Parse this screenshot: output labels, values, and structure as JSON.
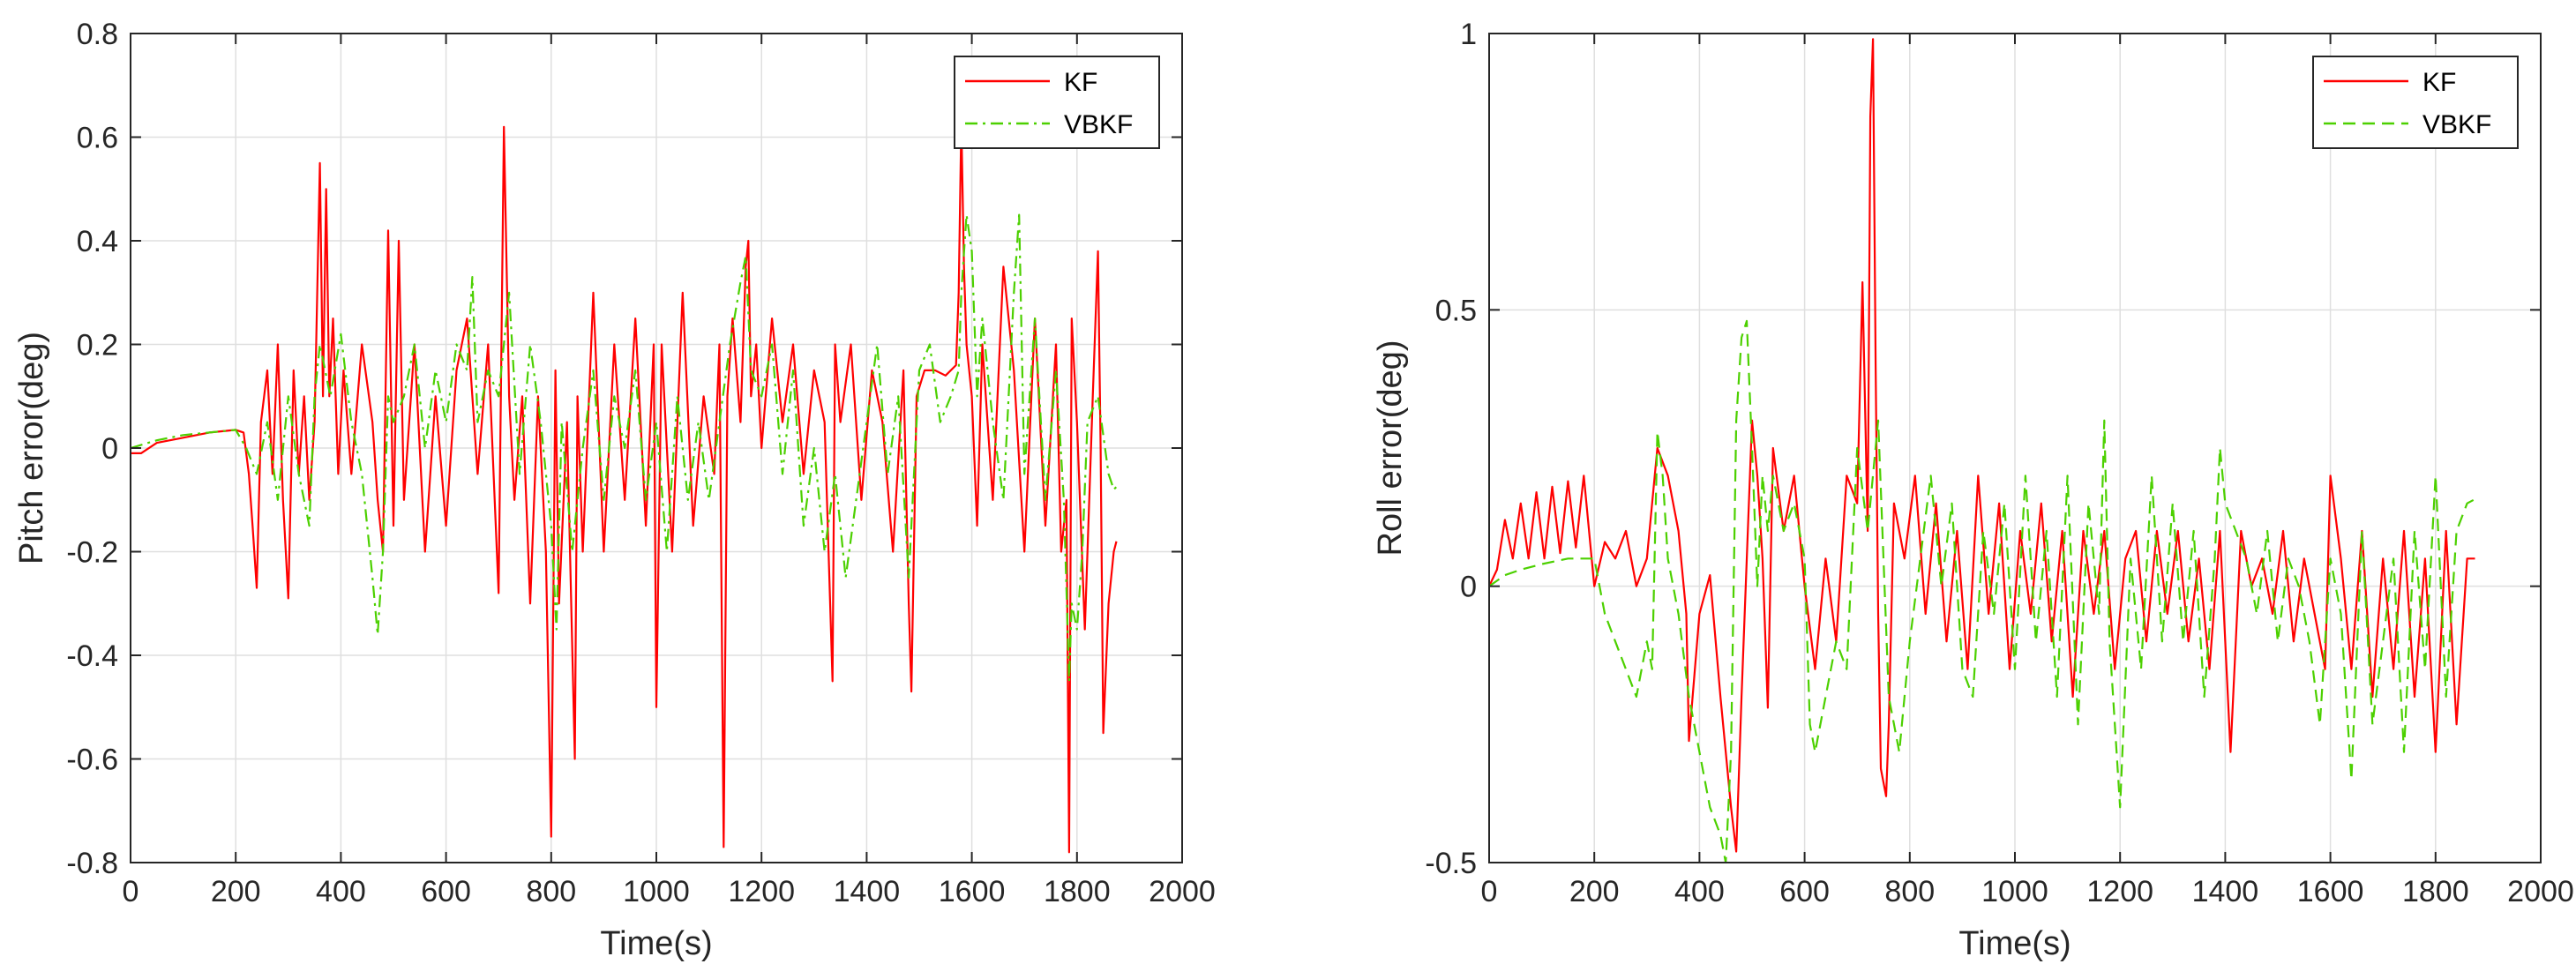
{
  "chart_data": [
    {
      "id": "pitch",
      "type": "line",
      "xlabel": "Time(s)",
      "ylabel": "Pitch error(deg)",
      "xlim": [
        0,
        2000
      ],
      "ylim": [
        -0.8,
        0.8
      ],
      "xticks": [
        0,
        200,
        400,
        600,
        800,
        1000,
        1200,
        1400,
        1600,
        1800,
        2000
      ],
      "xtick_labels": [
        "0",
        "200",
        "400",
        "600",
        "800",
        "1000",
        "1200",
        "1400",
        "1600",
        "1800",
        "2000"
      ],
      "yticks": [
        -0.8,
        -0.6,
        -0.4,
        -0.2,
        0,
        0.2,
        0.4,
        0.6,
        0.8
      ],
      "ytick_labels": [
        "-0.8",
        "-0.6",
        "-0.4",
        "-0.2",
        "0",
        "0.2",
        "0.4",
        "0.6",
        "0.8"
      ],
      "grid": true,
      "legend_position": "top-right",
      "series": [
        {
          "name": "KF",
          "color": "#ff0000",
          "style": "solid",
          "x": [
            0,
            20,
            50,
            100,
            150,
            200,
            215,
            225,
            232,
            240,
            248,
            260,
            270,
            280,
            290,
            300,
            310,
            320,
            330,
            340,
            350,
            360,
            366,
            372,
            378,
            385,
            395,
            405,
            420,
            440,
            460,
            470,
            480,
            490,
            500,
            510,
            520,
            540,
            560,
            580,
            600,
            620,
            640,
            660,
            680,
            700,
            710,
            720,
            730,
            745,
            760,
            775,
            790,
            800,
            808,
            815,
            830,
            845,
            850,
            860,
            880,
            900,
            920,
            940,
            960,
            980,
            995,
            1000,
            1010,
            1030,
            1050,
            1070,
            1090,
            1110,
            1120,
            1128,
            1135,
            1145,
            1160,
            1170,
            1175,
            1180,
            1190,
            1200,
            1220,
            1240,
            1260,
            1280,
            1300,
            1320,
            1335,
            1340,
            1350,
            1370,
            1390,
            1410,
            1430,
            1450,
            1470,
            1480,
            1485,
            1495,
            1510,
            1530,
            1550,
            1570,
            1575,
            1580,
            1585,
            1590,
            1600,
            1610,
            1620,
            1640,
            1660,
            1680,
            1700,
            1720,
            1740,
            1760,
            1770,
            1780,
            1785,
            1790,
            1800,
            1815,
            1830,
            1840,
            1845,
            1850,
            1860,
            1870,
            1875
          ],
          "y": [
            -0.01,
            -0.01,
            0.01,
            0.02,
            0.03,
            0.035,
            0.03,
            -0.05,
            -0.15,
            -0.27,
            0.05,
            0.15,
            -0.05,
            0.2,
            -0.1,
            -0.29,
            0.15,
            -0.05,
            0.1,
            -0.1,
            0.05,
            0.55,
            0.1,
            0.5,
            0.1,
            0.25,
            -0.05,
            0.15,
            -0.05,
            0.2,
            0.05,
            -0.1,
            -0.2,
            0.42,
            -0.15,
            0.4,
            -0.1,
            0.2,
            -0.2,
            0.1,
            -0.15,
            0.15,
            0.25,
            -0.05,
            0.2,
            -0.28,
            0.62,
            0.1,
            -0.1,
            0.1,
            -0.3,
            0.1,
            -0.2,
            -0.75,
            0.15,
            -0.3,
            0.05,
            -0.6,
            0.1,
            -0.2,
            0.3,
            -0.2,
            0.2,
            -0.1,
            0.25,
            -0.15,
            0.2,
            -0.5,
            0.2,
            -0.2,
            0.3,
            -0.15,
            0.1,
            -0.05,
            0.2,
            -0.77,
            0.1,
            0.25,
            0.05,
            0.35,
            0.4,
            0.1,
            0.2,
            0.0,
            0.25,
            0.05,
            0.2,
            -0.05,
            0.15,
            0.05,
            -0.45,
            0.2,
            0.05,
            0.2,
            -0.1,
            0.15,
            0.05,
            -0.2,
            0.15,
            -0.3,
            -0.47,
            0.1,
            0.15,
            0.15,
            0.14,
            0.16,
            0.3,
            0.63,
            0.35,
            0.2,
            0.1,
            -0.15,
            0.2,
            -0.1,
            0.35,
            0.15,
            -0.2,
            0.25,
            -0.15,
            0.2,
            -0.2,
            -0.1,
            -0.78,
            0.25,
            0.05,
            -0.35,
            0.1,
            0.38,
            0.0,
            -0.55,
            -0.3,
            -0.2,
            -0.18
          ]
        },
        {
          "name": "VBKF",
          "color": "#4cd000",
          "style": "dash-dot",
          "x": [
            0,
            50,
            100,
            150,
            200,
            220,
            240,
            260,
            280,
            300,
            320,
            340,
            350,
            360,
            380,
            400,
            420,
            440,
            460,
            470,
            480,
            490,
            500,
            520,
            540,
            560,
            580,
            600,
            620,
            640,
            650,
            660,
            680,
            700,
            720,
            740,
            760,
            780,
            800,
            810,
            820,
            840,
            860,
            880,
            900,
            920,
            940,
            960,
            980,
            1000,
            1020,
            1040,
            1060,
            1080,
            1100,
            1120,
            1140,
            1160,
            1170,
            1180,
            1200,
            1220,
            1240,
            1260,
            1280,
            1300,
            1320,
            1340,
            1360,
            1380,
            1400,
            1420,
            1440,
            1460,
            1480,
            1500,
            1520,
            1540,
            1560,
            1575,
            1580,
            1590,
            1600,
            1610,
            1620,
            1640,
            1660,
            1680,
            1690,
            1700,
            1720,
            1740,
            1760,
            1775,
            1785,
            1790,
            1800,
            1810,
            1820,
            1840,
            1860,
            1870,
            1880
          ],
          "y": [
            0.0,
            0.015,
            0.025,
            0.03,
            0.035,
            0.0,
            -0.05,
            0.05,
            -0.1,
            0.1,
            -0.05,
            -0.15,
            0.1,
            0.2,
            0.1,
            0.22,
            0.05,
            -0.05,
            -0.25,
            -0.36,
            -0.2,
            0.1,
            0.05,
            0.1,
            0.2,
            0.0,
            0.15,
            0.05,
            0.2,
            0.15,
            0.33,
            0.05,
            0.15,
            0.1,
            0.3,
            -0.05,
            0.2,
            0.05,
            -0.15,
            -0.35,
            0.05,
            -0.2,
            0.0,
            0.15,
            -0.1,
            0.1,
            0.0,
            0.15,
            -0.1,
            0.05,
            -0.2,
            0.1,
            -0.1,
            0.05,
            -0.1,
            0.05,
            0.2,
            0.32,
            0.37,
            0.15,
            0.1,
            0.2,
            -0.05,
            0.15,
            -0.15,
            0.0,
            -0.2,
            -0.05,
            -0.25,
            -0.1,
            0.05,
            0.2,
            -0.05,
            0.1,
            -0.25,
            0.15,
            0.2,
            0.05,
            0.1,
            0.15,
            0.3,
            0.45,
            0.38,
            0.1,
            0.25,
            0.05,
            -0.1,
            0.3,
            0.45,
            -0.05,
            0.25,
            -0.1,
            0.15,
            -0.1,
            -0.45,
            -0.3,
            -0.35,
            -0.2,
            0.05,
            0.1,
            -0.05,
            -0.08,
            -0.07
          ]
        }
      ]
    },
    {
      "id": "roll",
      "type": "line",
      "xlabel": "Time(s)",
      "ylabel": "Roll error(deg)",
      "xlim": [
        0,
        2000
      ],
      "ylim": [
        -0.5,
        1
      ],
      "xticks": [
        0,
        200,
        400,
        600,
        800,
        1000,
        1200,
        1400,
        1600,
        1800,
        2000
      ],
      "xtick_labels": [
        "0",
        "200",
        "400",
        "600",
        "800",
        "1000",
        "1200",
        "1400",
        "1600",
        "1800",
        "2000"
      ],
      "yticks": [
        -0.5,
        0,
        0.5,
        1
      ],
      "ytick_labels": [
        "-0.5",
        "0",
        "0.5",
        "1"
      ],
      "grid": true,
      "legend_position": "top-right",
      "series": [
        {
          "name": "KF",
          "color": "#ff0000",
          "style": "solid",
          "x": [
            0,
            15,
            30,
            45,
            60,
            75,
            90,
            105,
            120,
            135,
            150,
            165,
            180,
            200,
            220,
            240,
            260,
            280,
            300,
            320,
            340,
            360,
            375,
            380,
            400,
            420,
            440,
            460,
            470,
            480,
            500,
            510,
            520,
            530,
            540,
            560,
            580,
            600,
            620,
            640,
            660,
            680,
            700,
            710,
            720,
            725,
            730,
            735,
            740,
            745,
            755,
            760,
            770,
            790,
            810,
            830,
            850,
            870,
            890,
            910,
            930,
            950,
            970,
            990,
            1010,
            1030,
            1050,
            1070,
            1090,
            1110,
            1130,
            1150,
            1170,
            1190,
            1210,
            1230,
            1250,
            1270,
            1290,
            1310,
            1330,
            1350,
            1370,
            1390,
            1410,
            1430,
            1450,
            1470,
            1490,
            1510,
            1530,
            1550,
            1570,
            1590,
            1600,
            1620,
            1640,
            1660,
            1680,
            1700,
            1720,
            1740,
            1760,
            1780,
            1800,
            1820,
            1840,
            1860,
            1875
          ],
          "y": [
            0.0,
            0.03,
            0.12,
            0.05,
            0.15,
            0.05,
            0.17,
            0.05,
            0.18,
            0.06,
            0.19,
            0.07,
            0.2,
            0.0,
            0.08,
            0.05,
            0.1,
            0.0,
            0.05,
            0.25,
            0.2,
            0.1,
            -0.05,
            -0.28,
            -0.05,
            0.02,
            -0.2,
            -0.4,
            -0.48,
            -0.2,
            0.3,
            0.2,
            0.05,
            -0.22,
            0.25,
            0.1,
            0.2,
            0.0,
            -0.15,
            0.05,
            -0.1,
            0.2,
            0.15,
            0.55,
            0.1,
            0.85,
            0.99,
            0.4,
            -0.05,
            -0.33,
            -0.38,
            -0.25,
            0.15,
            0.05,
            0.2,
            -0.05,
            0.15,
            -0.1,
            0.1,
            -0.15,
            0.2,
            -0.05,
            0.15,
            -0.15,
            0.1,
            -0.05,
            0.15,
            -0.1,
            0.1,
            -0.2,
            0.1,
            -0.05,
            0.1,
            -0.15,
            0.05,
            0.1,
            -0.1,
            0.1,
            -0.05,
            0.1,
            -0.1,
            0.05,
            -0.15,
            0.1,
            -0.3,
            0.1,
            0.0,
            0.05,
            -0.05,
            0.1,
            -0.1,
            0.05,
            -0.05,
            -0.15,
            0.2,
            0.05,
            -0.15,
            0.1,
            -0.2,
            0.05,
            -0.15,
            0.1,
            -0.2,
            0.05,
            -0.3,
            0.1,
            -0.25,
            0.05,
            0.05
          ]
        },
        {
          "name": "VBKF",
          "color": "#4cd000",
          "style": "dashed",
          "x": [
            0,
            30,
            60,
            100,
            150,
            200,
            220,
            240,
            260,
            280,
            300,
            310,
            320,
            330,
            340,
            360,
            380,
            400,
            420,
            440,
            450,
            460,
            470,
            480,
            490,
            500,
            510,
            520,
            530,
            540,
            560,
            580,
            600,
            610,
            620,
            640,
            660,
            680,
            700,
            720,
            740,
            750,
            760,
            780,
            800,
            820,
            840,
            860,
            880,
            900,
            920,
            940,
            960,
            980,
            1000,
            1020,
            1040,
            1060,
            1080,
            1100,
            1120,
            1140,
            1160,
            1170,
            1180,
            1200,
            1220,
            1240,
            1260,
            1280,
            1300,
            1320,
            1340,
            1360,
            1380,
            1390,
            1400,
            1420,
            1440,
            1460,
            1480,
            1500,
            1520,
            1540,
            1560,
            1580,
            1600,
            1620,
            1640,
            1660,
            1680,
            1700,
            1720,
            1740,
            1760,
            1780,
            1800,
            1820,
            1840,
            1860,
            1880
          ],
          "y": [
            0.0,
            0.02,
            0.03,
            0.04,
            0.05,
            0.05,
            -0.05,
            -0.1,
            -0.15,
            -0.2,
            -0.1,
            -0.15,
            0.28,
            0.2,
            0.05,
            -0.05,
            -0.2,
            -0.3,
            -0.4,
            -0.45,
            -0.5,
            -0.3,
            0.3,
            0.45,
            0.48,
            0.25,
            0.0,
            0.2,
            0.1,
            0.2,
            0.1,
            0.15,
            0.05,
            -0.25,
            -0.3,
            -0.2,
            -0.1,
            -0.15,
            0.25,
            0.1,
            0.3,
            0.05,
            -0.2,
            -0.3,
            -0.1,
            0.05,
            0.2,
            0.0,
            0.15,
            -0.15,
            -0.2,
            0.1,
            -0.05,
            0.15,
            -0.15,
            0.2,
            -0.1,
            0.1,
            -0.2,
            0.2,
            -0.25,
            0.15,
            -0.05,
            0.3,
            -0.1,
            -0.4,
            0.05,
            -0.15,
            0.2,
            -0.1,
            0.15,
            -0.1,
            0.1,
            -0.2,
            0.05,
            0.25,
            0.15,
            0.1,
            0.05,
            -0.05,
            0.1,
            -0.1,
            0.05,
            0.0,
            -0.1,
            -0.25,
            0.05,
            -0.05,
            -0.35,
            0.1,
            -0.25,
            -0.1,
            0.05,
            -0.3,
            0.1,
            -0.15,
            0.2,
            -0.2,
            0.1,
            0.15,
            0.16
          ]
        }
      ]
    }
  ]
}
